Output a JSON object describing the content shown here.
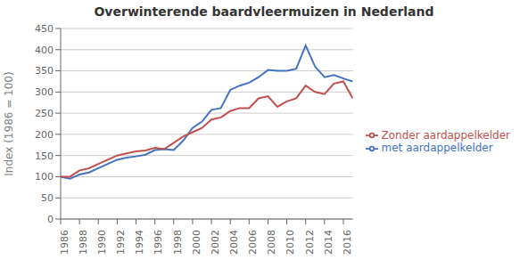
{
  "chart_data": {
    "type": "line",
    "title": "Overwinterende baardvleermuizen in Nederland",
    "y_label": "Index (1986 = 100)",
    "x": [
      1986,
      1987,
      1988,
      1989,
      1990,
      1991,
      1992,
      1993,
      1994,
      1995,
      1996,
      1997,
      1998,
      1999,
      2000,
      2001,
      2002,
      2003,
      2004,
      2005,
      2006,
      2007,
      2008,
      2009,
      2010,
      2011,
      2012,
      2013,
      2014,
      2015,
      2016,
      2017
    ],
    "series": [
      {
        "name": "met aardappelkelder",
        "color": "#4472C4",
        "values": [
          100,
          95,
          105,
          110,
          120,
          130,
          140,
          145,
          148,
          152,
          163,
          165,
          163,
          185,
          215,
          230,
          258,
          262,
          305,
          315,
          322,
          335,
          352,
          350,
          350,
          355,
          410,
          360,
          335,
          340,
          332,
          325
        ]
      },
      {
        "name": "Zonder aardappelkelder",
        "color": "#C0504D",
        "values": [
          100,
          100,
          115,
          120,
          130,
          140,
          150,
          155,
          160,
          162,
          168,
          165,
          180,
          195,
          205,
          215,
          235,
          240,
          255,
          262,
          262,
          285,
          290,
          265,
          278,
          285,
          315,
          300,
          295,
          320,
          325,
          285
        ]
      }
    ],
    "xlim": [
      1986,
      2017
    ],
    "xticks": [
      1986,
      1988,
      1990,
      1992,
      1994,
      1996,
      1998,
      2000,
      2002,
      2004,
      2006,
      2008,
      2010,
      2012,
      2014,
      2016
    ],
    "ylim": [
      0,
      450
    ],
    "yticks": [
      0,
      50,
      100,
      150,
      200,
      250,
      300,
      350,
      400,
      450
    ],
    "grid": "y",
    "legend": "right"
  }
}
